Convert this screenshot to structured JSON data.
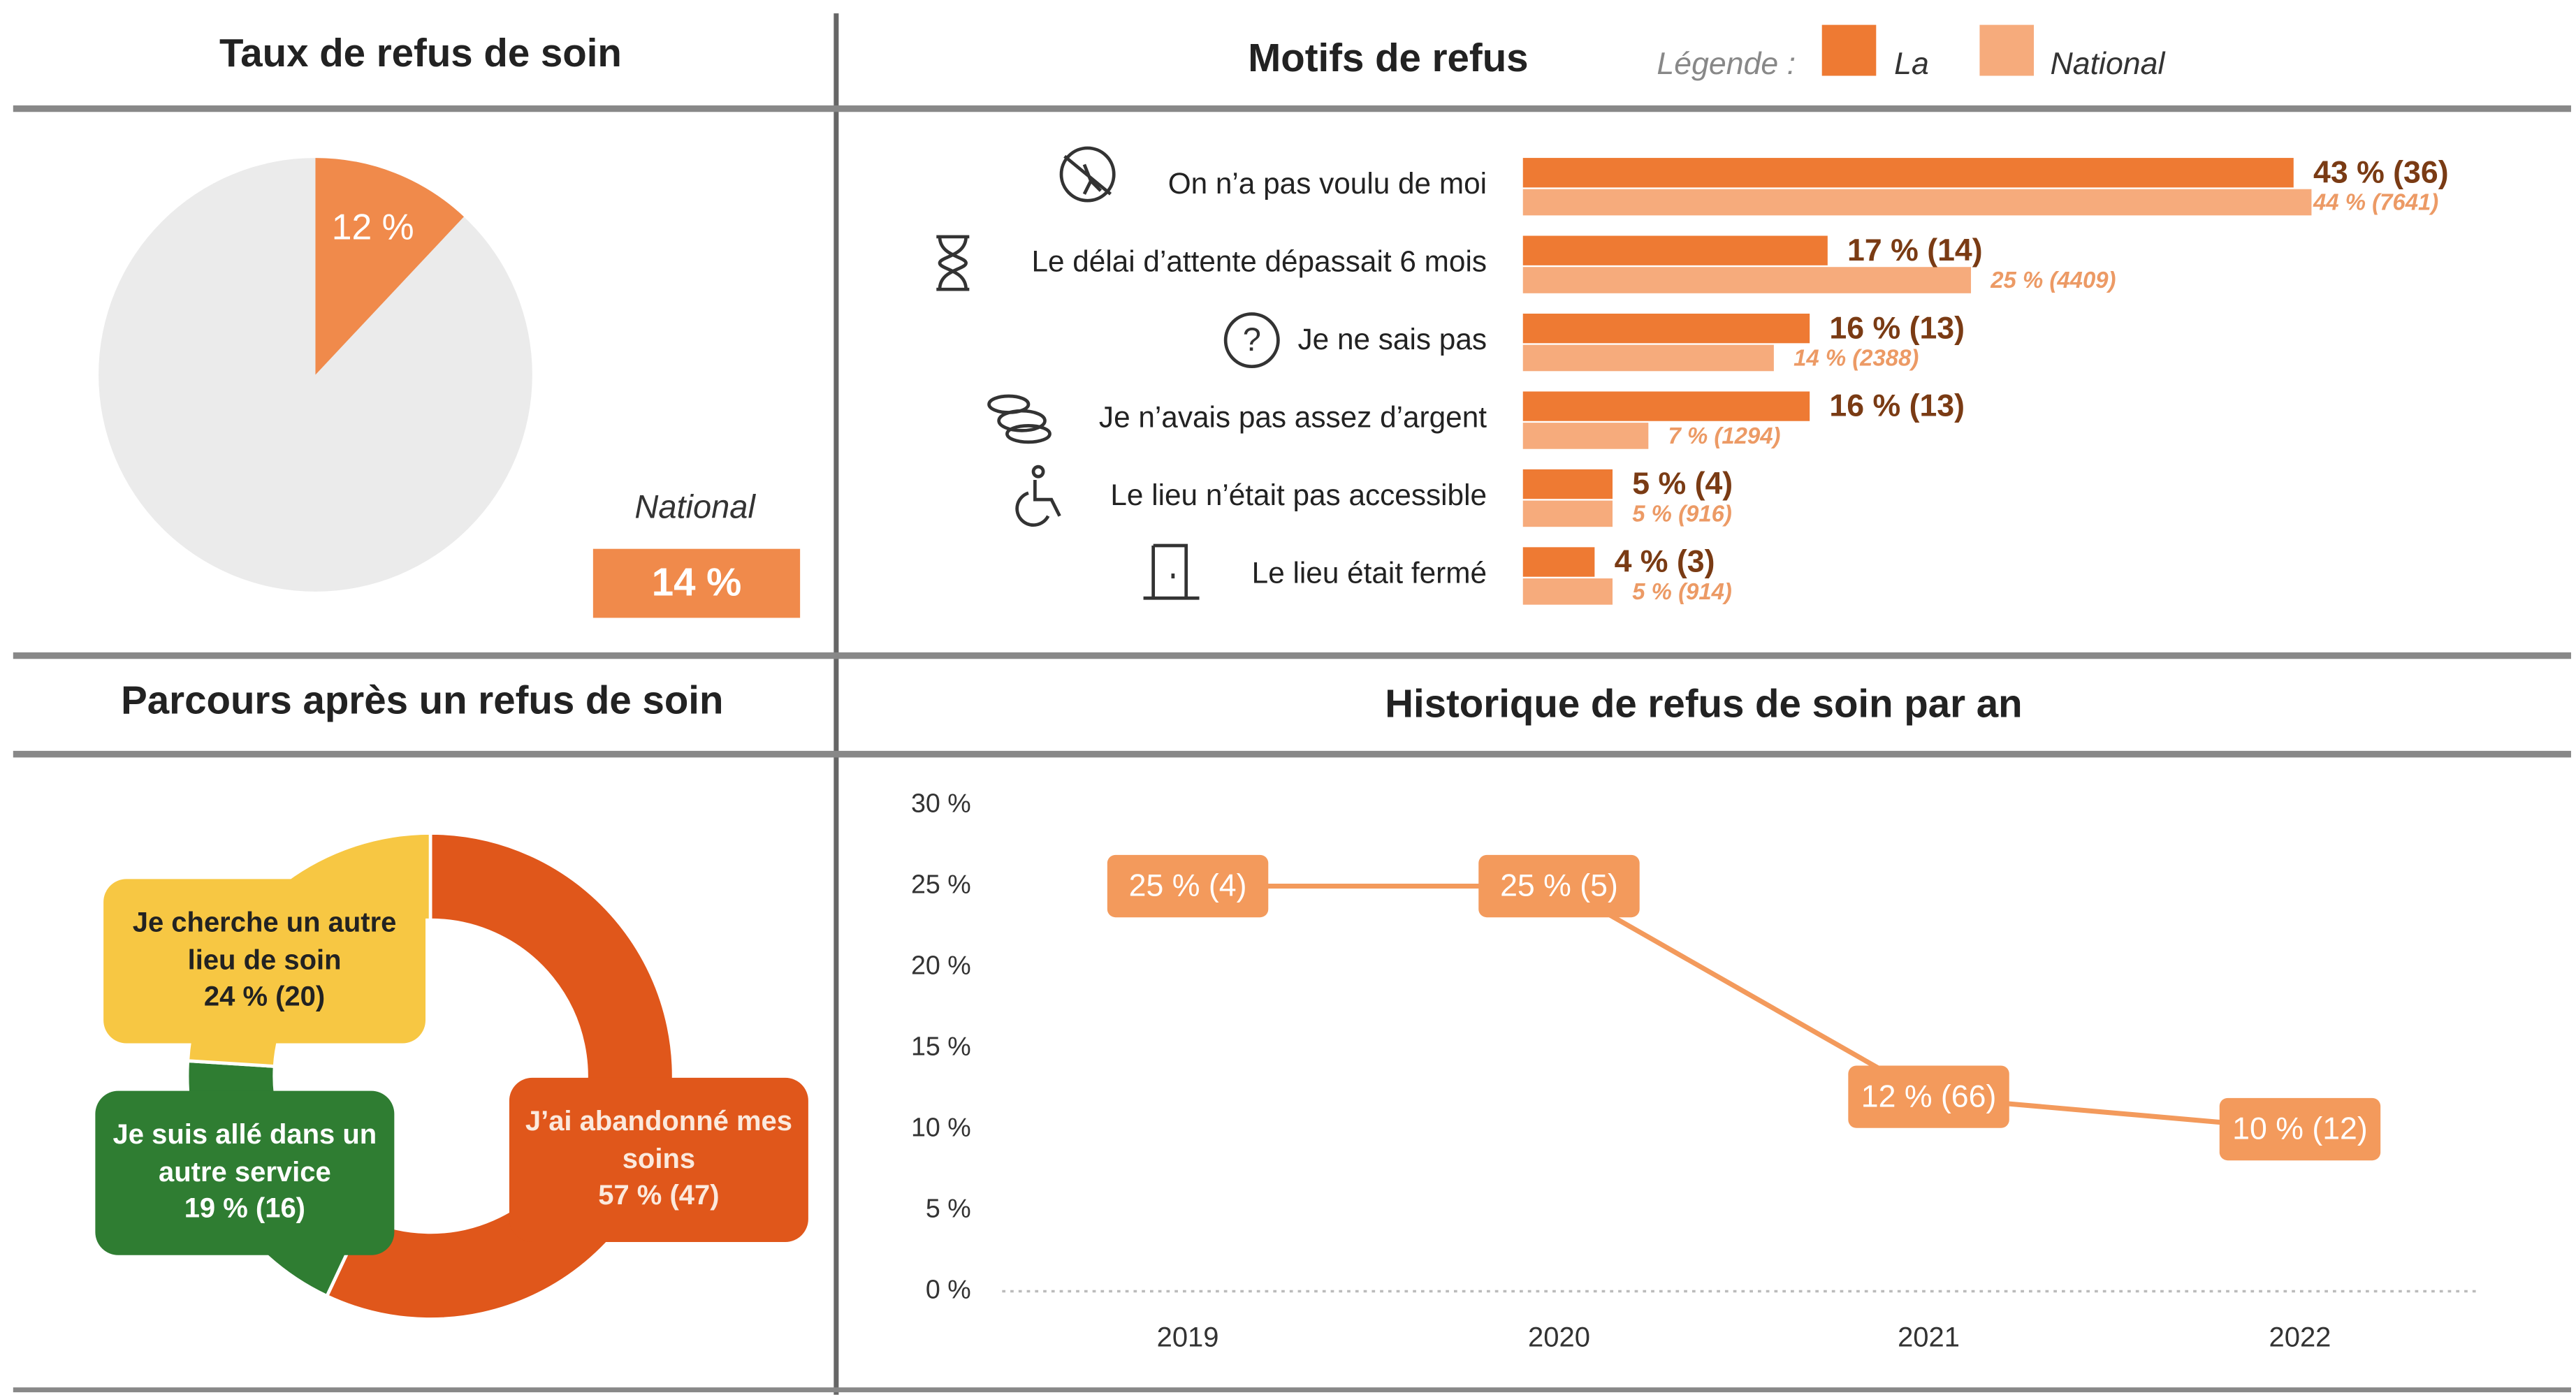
{
  "chart_data": [
    {
      "type": "pie",
      "title": "Taux de refus de soin",
      "values": [
        12
      ],
      "value_labels": [
        "12 %"
      ],
      "color": "#f08a4b",
      "background": "#ebebeb",
      "national_label": "National",
      "national_value": 14,
      "national_value_label": "14 %"
    },
    {
      "type": "hbar",
      "title": "Motifs de refus",
      "legend_title": "Légende :",
      "categories": [
        "On n’a pas voulu de moi",
        "Le délai d’attente dépassait 6 mois",
        "Je ne sais pas",
        "Je n’avais pas assez d’argent",
        "Le lieu n’était pas accessible",
        "Le lieu était fermé"
      ],
      "series": [
        {
          "name": "La",
          "color": "#ee7a33",
          "values": [
            43,
            17,
            16,
            16,
            5,
            4
          ],
          "value_labels": [
            "43 % (36)",
            "17 % (14)",
            "16 % (13)",
            "16 % (13)",
            "5 % (4)",
            "4 % (3)"
          ]
        },
        {
          "name": "National",
          "color": "#f6ab7c",
          "values": [
            44,
            25,
            14,
            7,
            5,
            5
          ],
          "value_labels": [
            "44 % (7641)",
            "25 % (4409)",
            "14 % (2388)",
            "7 % (1294)",
            "5 % (916)",
            "5 % (914)"
          ]
        }
      ],
      "xlim": [
        0,
        44
      ]
    },
    {
      "type": "donut",
      "title": "Parcours après un refus de soin",
      "categories": [
        "J’ai abandonné mes soins",
        "Je suis allé dans un autre service",
        "Je cherche un autre lieu de soin"
      ],
      "values": [
        57,
        19,
        24
      ],
      "value_labels": [
        "57 % (47)",
        "19 % (16)",
        "24 % (20)"
      ],
      "colors": [
        "#e0571b",
        "#2f7d32",
        "#f7c743"
      ]
    },
    {
      "type": "line",
      "title": "Historique de refus de soin par an",
      "categories": [
        "2019",
        "2020",
        "2021",
        "2022"
      ],
      "values": [
        25,
        25,
        12,
        10
      ],
      "value_labels": [
        "25 % (4)",
        "25 % (5)",
        "12 % (66)",
        "10 % (12)"
      ],
      "color": "#f39a5c",
      "ylim": [
        0,
        30
      ],
      "yticks": [
        {
          "value": 0,
          "label": "0 %"
        },
        {
          "value": 5,
          "label": "5 %"
        },
        {
          "value": 10,
          "label": "10 %"
        },
        {
          "value": 15,
          "label": "15 %"
        },
        {
          "value": 20,
          "label": "20 %"
        },
        {
          "value": 25,
          "label": "25 %"
        },
        {
          "value": 30,
          "label": "30 %"
        }
      ]
    }
  ]
}
